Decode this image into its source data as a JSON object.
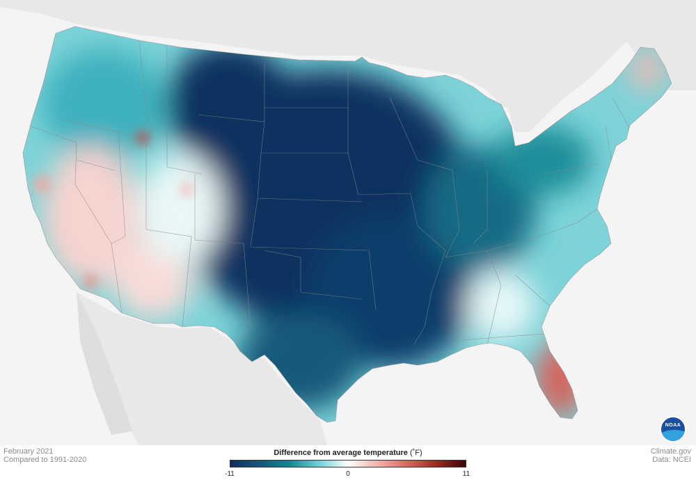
{
  "map": {
    "land_color": "#e8e8e8",
    "water_color": "#f4f4f4",
    "state_line_color": "#888888"
  },
  "caption_left": {
    "line1": "February 2021",
    "line2": "Compared to 1991-2020"
  },
  "caption_right": {
    "line1": "Climate.gov",
    "line2": "Data: NCEI"
  },
  "legend": {
    "title": "Difference from average temperature",
    "unit": "(˚F)",
    "ticks": [
      "-11",
      "0",
      "11"
    ],
    "colors": [
      "#0f2c5c",
      "#16577a",
      "#0f8792",
      "#6ecfd6",
      "#ffffff",
      "#f3b2ac",
      "#d7695f",
      "#9c2a23",
      "#3d0707"
    ]
  },
  "logo": {
    "text": "NOAA",
    "icon": "noaa-logo-icon"
  }
}
